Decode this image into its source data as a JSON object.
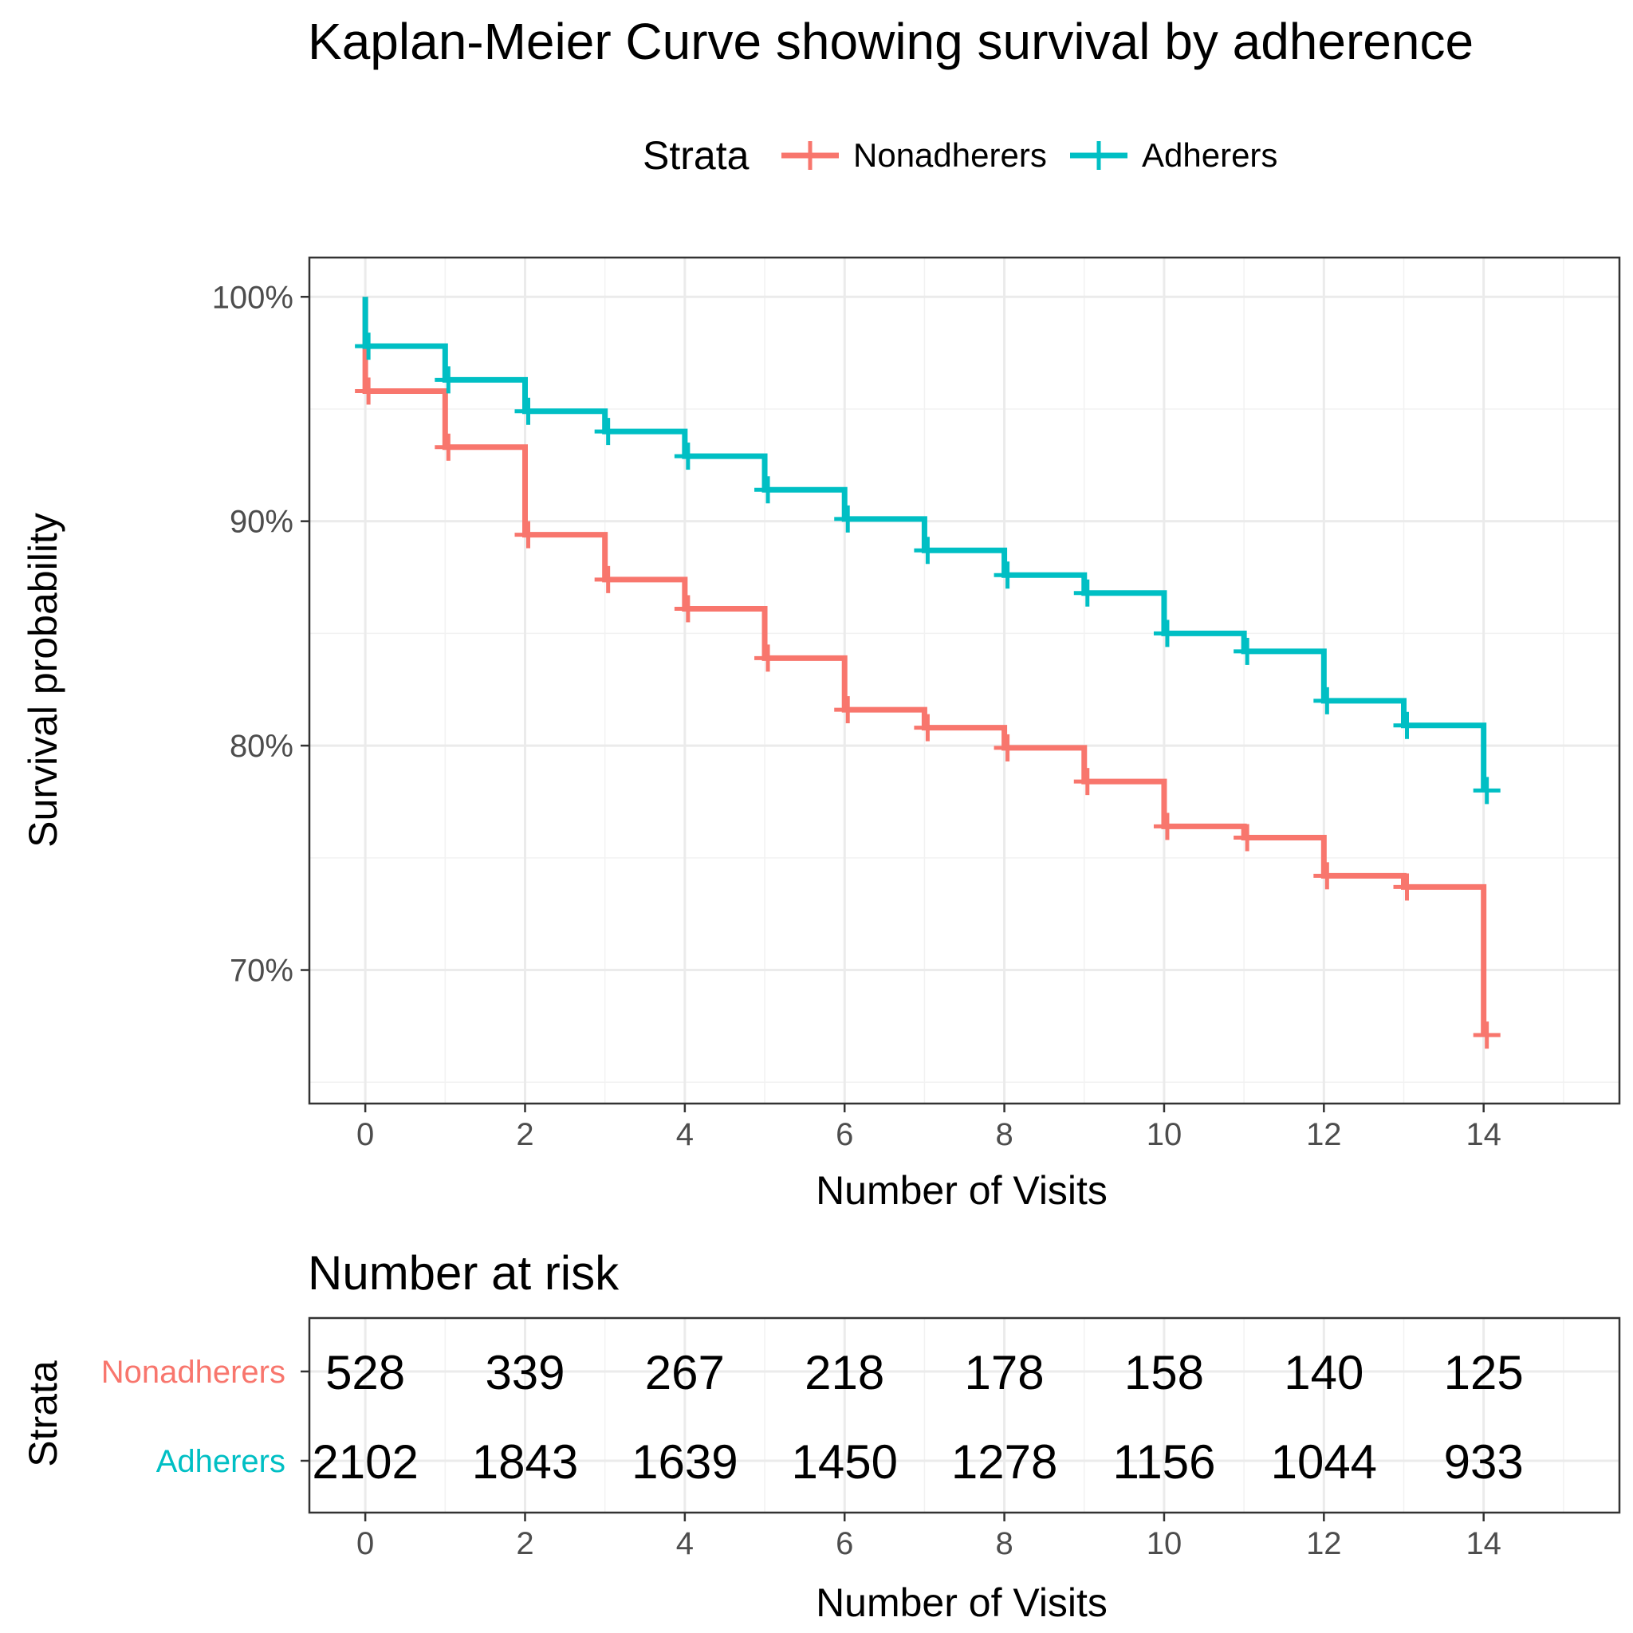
{
  "chart_data": [
    {
      "type": "line",
      "subtype": "kaplan-meier-step",
      "title": "Kaplan-Meier Curve showing survival by adherence",
      "xlabel": "Number of Visits",
      "ylabel": "Survival probability",
      "xlim": [
        -0.7,
        15.7
      ],
      "ylim": [
        0.6405,
        1.0175
      ],
      "x_ticks": [
        0,
        2,
        4,
        6,
        8,
        10,
        12,
        14
      ],
      "y_ticks": [
        0.7,
        0.8,
        0.9,
        1.0
      ],
      "y_tick_labels": [
        "70%",
        "80%",
        "90%",
        "100%"
      ],
      "grid": true,
      "legend": {
        "title": "Strata",
        "position": "top"
      },
      "series": [
        {
          "name": "Nonadherers",
          "color": "#F8766D",
          "start": 1.0,
          "x": [
            0,
            1,
            2,
            3,
            4,
            5,
            6,
            7,
            8,
            9,
            10,
            11,
            12,
            13,
            14
          ],
          "y": [
            0.958,
            0.933,
            0.894,
            0.874,
            0.861,
            0.839,
            0.816,
            0.808,
            0.799,
            0.784,
            0.764,
            0.759,
            0.742,
            0.737,
            0.671
          ]
        },
        {
          "name": "Adherers",
          "color": "#00BFC4",
          "start": 1.0,
          "x": [
            0,
            1,
            2,
            3,
            4,
            5,
            6,
            7,
            8,
            9,
            10,
            11,
            12,
            13,
            14
          ],
          "y": [
            0.978,
            0.963,
            0.949,
            0.94,
            0.929,
            0.914,
            0.901,
            0.887,
            0.876,
            0.868,
            0.85,
            0.842,
            0.82,
            0.809,
            0.78
          ]
        }
      ]
    },
    {
      "type": "table",
      "title": "Number at risk",
      "xlabel": "Number of Visits",
      "ylabel": "Strata",
      "x_ticks": [
        0,
        2,
        4,
        6,
        8,
        10,
        12,
        14
      ],
      "rows": [
        {
          "name": "Nonadherers",
          "color": "#F8766D",
          "values": [
            "528",
            "339",
            "267",
            "218",
            "178",
            "158",
            "140",
            "125"
          ]
        },
        {
          "name": "Adherers",
          "color": "#00BFC4",
          "values": [
            "2102",
            "1843",
            "1639",
            "1450",
            "1278",
            "1156",
            "1044",
            "933"
          ]
        }
      ]
    }
  ]
}
